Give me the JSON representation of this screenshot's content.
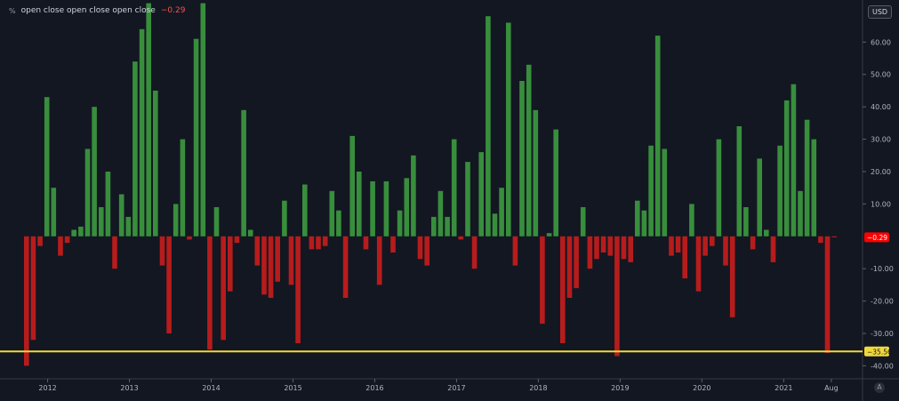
{
  "legend": {
    "icon": "percent-icon",
    "title": "open close open close open close",
    "value": "−0.29"
  },
  "price_axis": {
    "currency": "USD"
  },
  "controls": {
    "auto_label": "A"
  },
  "colors": {
    "background": "#131722",
    "up": "#388e3c",
    "down": "#b71c1c",
    "highlight_line": "#f2d93a",
    "last_value_badge": "#ff0000"
  },
  "chart_data": {
    "type": "bar",
    "title": "open close open close open close",
    "xlabel": "",
    "ylabel": "",
    "ylim": [
      -44,
      73
    ],
    "grid": false,
    "y_ticks": [
      60,
      50,
      40,
      30,
      20,
      10,
      -10,
      -20,
      -30,
      -40
    ],
    "y_tick_labels": [
      "60.00",
      "50.00",
      "40.00",
      "30.00",
      "20.00",
      "10.00",
      "-10.00",
      "-20.00",
      "-30.00",
      "-40.00"
    ],
    "x_ticks": [
      {
        "label": "2012",
        "value": 2012.0
      },
      {
        "label": "2013",
        "value": 2013.0
      },
      {
        "label": "2014",
        "value": 2014.0
      },
      {
        "label": "2015",
        "value": 2015.0
      },
      {
        "label": "2016",
        "value": 2016.0
      },
      {
        "label": "2017",
        "value": 2017.0
      },
      {
        "label": "2018",
        "value": 2018.0
      },
      {
        "label": "2019",
        "value": 2019.0
      },
      {
        "label": "2020",
        "value": 2020.0
      },
      {
        "label": "2021",
        "value": 2021.0
      },
      {
        "label": "Aug",
        "value": 2021.583
      }
    ],
    "last_value": -0.29,
    "last_value_label": "−0.29",
    "highlight_line": {
      "value": -35.56,
      "label": "−35.56"
    },
    "series": [
      {
        "values": [
          -40,
          -32,
          -3,
          43,
          15,
          -6,
          -2,
          2,
          3,
          27,
          40,
          9,
          20,
          -10,
          13,
          6,
          54,
          64,
          72,
          45,
          -9,
          -30,
          10,
          30,
          -1,
          61,
          72,
          -35,
          9,
          -32,
          -17,
          -2,
          39,
          2,
          -9,
          -18,
          -19,
          -14,
          11,
          -15,
          -33,
          16,
          -4,
          -4,
          -3,
          14,
          8,
          -19,
          31,
          20,
          -4,
          17,
          -15,
          17,
          -5,
          8,
          18,
          25,
          -7,
          -9,
          6,
          14,
          6,
          30,
          -1,
          23,
          -10,
          26,
          68,
          7,
          15,
          66,
          -9,
          48,
          53,
          39,
          -27,
          1,
          33,
          -33,
          -19,
          -16,
          9,
          -10,
          -7,
          -5,
          -6,
          -37,
          -7,
          -8,
          11,
          8,
          28,
          62,
          27,
          -6,
          -5,
          -13,
          10,
          -17,
          -6,
          -3,
          30,
          -9,
          -25,
          34,
          9,
          -4,
          24,
          2,
          -8,
          28,
          42,
          47,
          14,
          36,
          30,
          -2,
          -36,
          -0.3
        ]
      }
    ]
  }
}
